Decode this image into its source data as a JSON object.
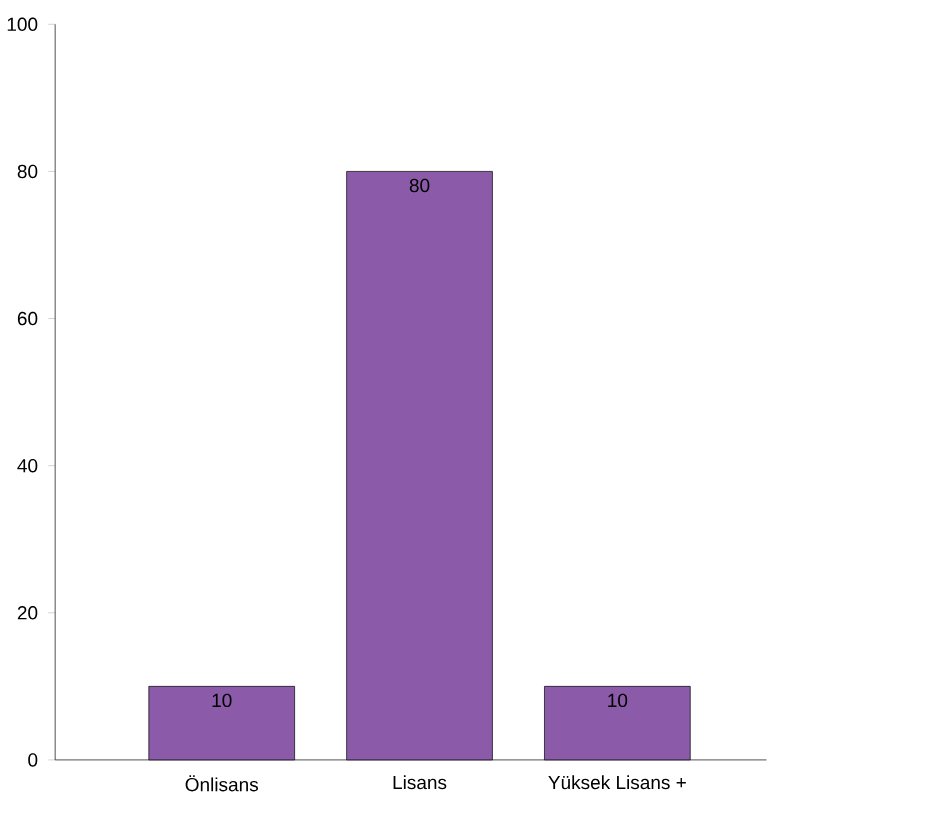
{
  "chart_data": {
    "type": "bar",
    "categories": [
      "Önlisans",
      "Lisans",
      "Yüksek Lisans +"
    ],
    "values": [
      10,
      80,
      10
    ],
    "color": "#8b5aa8",
    "ylim": [
      0,
      100
    ],
    "yticks": [
      0,
      20,
      40,
      60,
      80,
      100
    ],
    "data_labels": true
  }
}
